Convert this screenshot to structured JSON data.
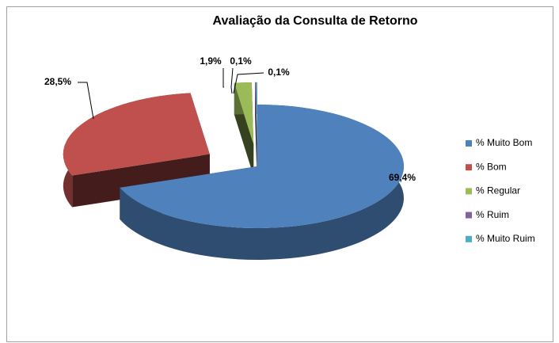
{
  "chart_data": {
    "type": "pie",
    "title": "Avaliação da Consulta de Retorno",
    "categories": [
      "% Muito Bom",
      "% Bom",
      "% Regular",
      "% Ruim",
      "% Muito Ruim"
    ],
    "values": [
      69.4,
      28.5,
      1.9,
      0.1,
      0.1
    ],
    "value_labels": [
      "69,4%",
      "28,5%",
      "1,9%",
      "0,1%",
      "0,1%"
    ],
    "colors": [
      "#4f81bd",
      "#c0504d",
      "#9bbb59",
      "#8064a2",
      "#4bacc6"
    ],
    "legend": "right"
  }
}
